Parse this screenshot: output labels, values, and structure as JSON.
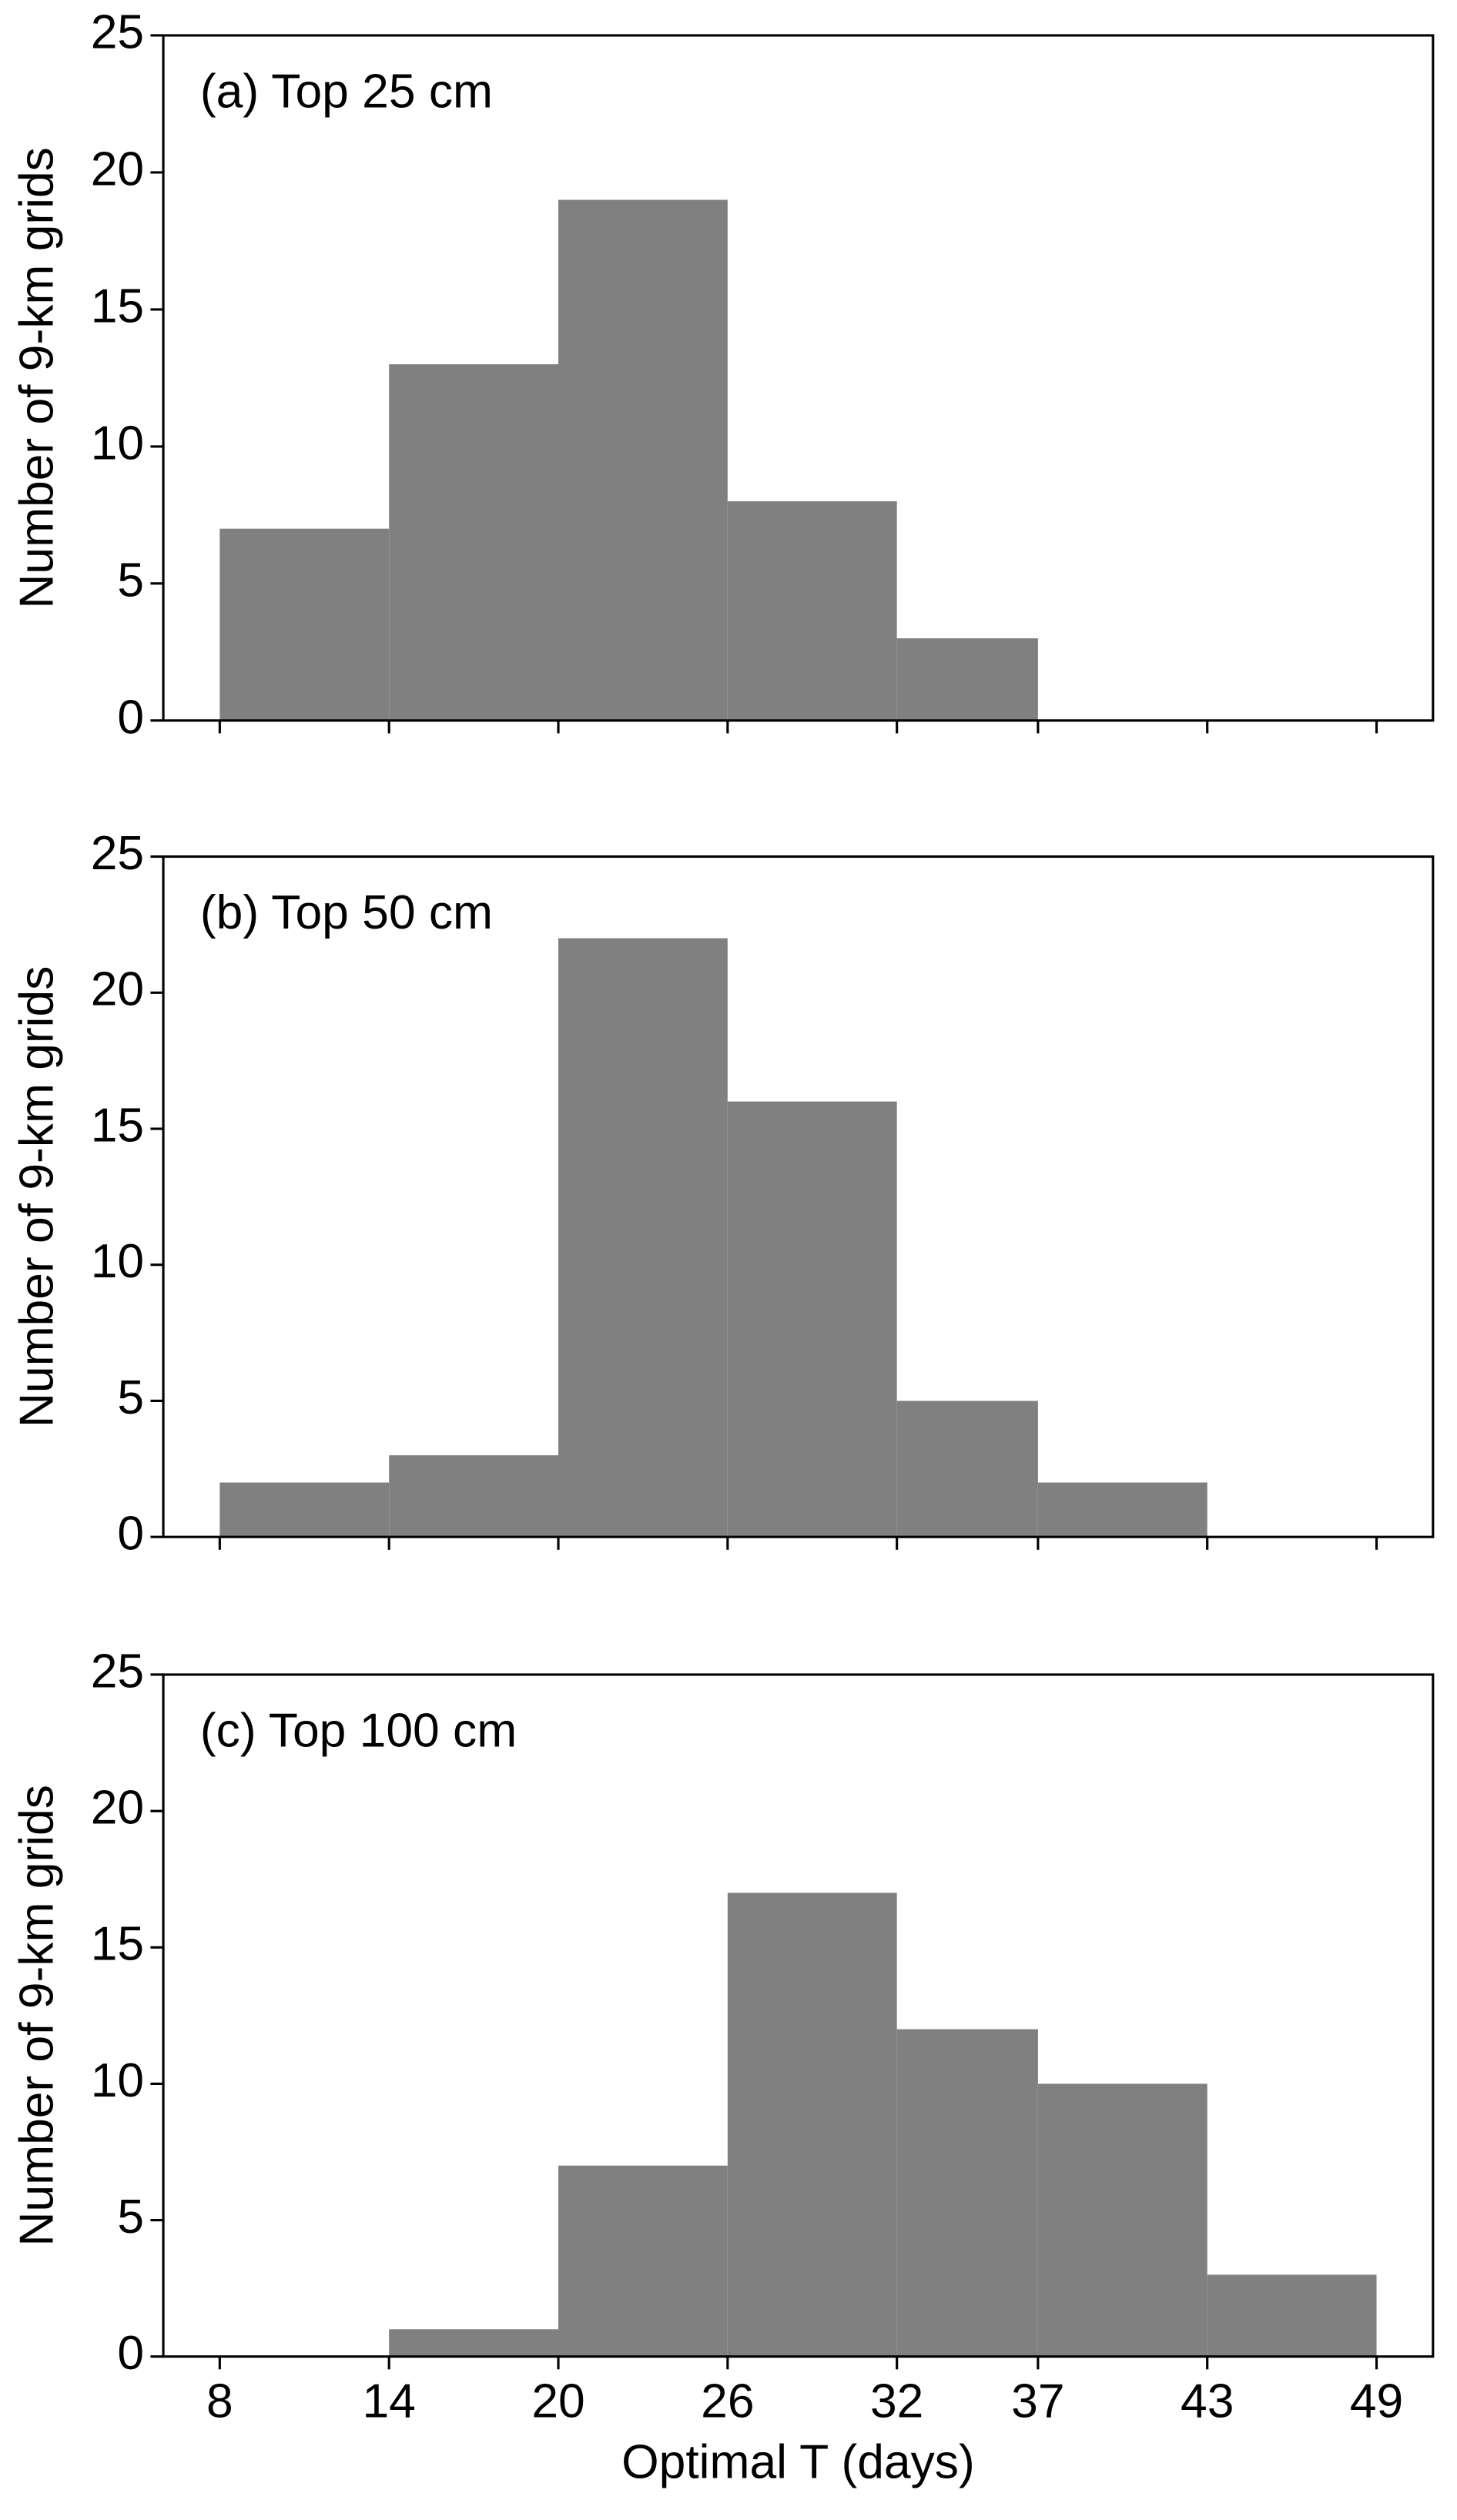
{
  "chart_data": [
    {
      "type": "histogram",
      "title": "(a) Top 25 cm",
      "ylabel": "Number of 9-km grids",
      "color": "#808080",
      "bins": [
        8,
        14,
        20,
        26,
        32,
        37,
        43,
        49
      ],
      "values": [
        7,
        13,
        19,
        8,
        3,
        0,
        0
      ],
      "xlim": [
        6,
        51
      ],
      "xticks": [
        8,
        14,
        20,
        26,
        32,
        37,
        43,
        49
      ],
      "ylim": [
        0,
        25
      ],
      "yticks": [
        0,
        5,
        10,
        15,
        20,
        25
      ]
    },
    {
      "type": "histogram",
      "title": "(b) Top 50 cm",
      "ylabel": "Number of 9-km grids",
      "color": "#808080",
      "bins": [
        8,
        14,
        20,
        26,
        32,
        37,
        43,
        49
      ],
      "values": [
        2,
        3,
        22,
        16,
        5,
        2,
        0
      ],
      "xlim": [
        6,
        51
      ],
      "xticks": [
        8,
        14,
        20,
        26,
        32,
        37,
        43,
        49
      ],
      "ylim": [
        0,
        25
      ],
      "yticks": [
        0,
        5,
        10,
        15,
        20,
        25
      ]
    },
    {
      "type": "histogram",
      "title": "(c) Top 100 cm",
      "ylabel": "Number of 9-km grids",
      "xlabel": "Optimal T (days)",
      "color": "#808080",
      "bins": [
        8,
        14,
        20,
        26,
        32,
        37,
        43,
        49
      ],
      "values": [
        0,
        1,
        7,
        17,
        12,
        10,
        3
      ],
      "xlim": [
        6,
        51
      ],
      "xticks": [
        8,
        14,
        20,
        26,
        32,
        37,
        43,
        49
      ],
      "ylim": [
        0,
        25
      ],
      "yticks": [
        0,
        5,
        10,
        15,
        20,
        25
      ]
    }
  ]
}
